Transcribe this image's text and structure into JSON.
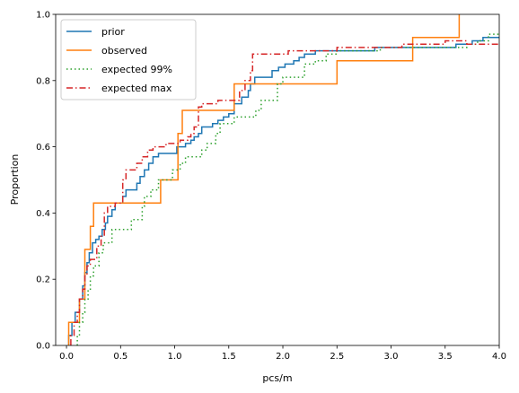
{
  "chart_data": {
    "type": "line",
    "step": true,
    "xlabel": "pcs/m",
    "ylabel": "Proportion",
    "xlim": [
      -0.1,
      4.0
    ],
    "ylim": [
      0.0,
      1.0
    ],
    "xticks": [
      "0.0",
      "0.5",
      "1.0",
      "1.5",
      "2.0",
      "2.5",
      "3.0",
      "3.5",
      "4.0"
    ],
    "yticks": [
      "0.0",
      "0.2",
      "0.4",
      "0.6",
      "0.8",
      "1.0"
    ],
    "legend_position": "top-left",
    "grid": false,
    "series": [
      {
        "name": "prior",
        "color": "#1f77b4",
        "dash": "solid",
        "points": [
          [
            0.02,
            0.0
          ],
          [
            0.02,
            0.03
          ],
          [
            0.05,
            0.03
          ],
          [
            0.05,
            0.07
          ],
          [
            0.08,
            0.07
          ],
          [
            0.08,
            0.1
          ],
          [
            0.12,
            0.1
          ],
          [
            0.12,
            0.14
          ],
          [
            0.15,
            0.14
          ],
          [
            0.15,
            0.18
          ],
          [
            0.17,
            0.18
          ],
          [
            0.17,
            0.22
          ],
          [
            0.19,
            0.22
          ],
          [
            0.19,
            0.25
          ],
          [
            0.21,
            0.25
          ],
          [
            0.21,
            0.28
          ],
          [
            0.24,
            0.28
          ],
          [
            0.24,
            0.31
          ],
          [
            0.27,
            0.31
          ],
          [
            0.27,
            0.32
          ],
          [
            0.3,
            0.32
          ],
          [
            0.3,
            0.33
          ],
          [
            0.33,
            0.33
          ],
          [
            0.33,
            0.35
          ],
          [
            0.36,
            0.35
          ],
          [
            0.36,
            0.37
          ],
          [
            0.38,
            0.37
          ],
          [
            0.38,
            0.39
          ],
          [
            0.42,
            0.39
          ],
          [
            0.42,
            0.41
          ],
          [
            0.45,
            0.41
          ],
          [
            0.45,
            0.43
          ],
          [
            0.52,
            0.43
          ],
          [
            0.52,
            0.45
          ],
          [
            0.55,
            0.45
          ],
          [
            0.55,
            0.47
          ],
          [
            0.65,
            0.47
          ],
          [
            0.65,
            0.49
          ],
          [
            0.68,
            0.49
          ],
          [
            0.68,
            0.51
          ],
          [
            0.72,
            0.51
          ],
          [
            0.72,
            0.53
          ],
          [
            0.76,
            0.53
          ],
          [
            0.76,
            0.55
          ],
          [
            0.8,
            0.55
          ],
          [
            0.8,
            0.57
          ],
          [
            0.85,
            0.57
          ],
          [
            0.85,
            0.58
          ],
          [
            0.9,
            0.58
          ],
          [
            0.9,
            0.58
          ],
          [
            1.02,
            0.58
          ],
          [
            1.02,
            0.6
          ],
          [
            1.1,
            0.6
          ],
          [
            1.1,
            0.61
          ],
          [
            1.15,
            0.61
          ],
          [
            1.15,
            0.62
          ],
          [
            1.18,
            0.62
          ],
          [
            1.18,
            0.63
          ],
          [
            1.22,
            0.63
          ],
          [
            1.22,
            0.64
          ],
          [
            1.25,
            0.64
          ],
          [
            1.25,
            0.66
          ],
          [
            1.35,
            0.66
          ],
          [
            1.35,
            0.67
          ],
          [
            1.4,
            0.67
          ],
          [
            1.4,
            0.68
          ],
          [
            1.45,
            0.68
          ],
          [
            1.45,
            0.69
          ],
          [
            1.5,
            0.69
          ],
          [
            1.5,
            0.7
          ],
          [
            1.55,
            0.7
          ],
          [
            1.55,
            0.73
          ],
          [
            1.62,
            0.73
          ],
          [
            1.62,
            0.75
          ],
          [
            1.68,
            0.75
          ],
          [
            1.68,
            0.77
          ],
          [
            1.7,
            0.77
          ],
          [
            1.7,
            0.79
          ],
          [
            1.74,
            0.79
          ],
          [
            1.74,
            0.81
          ],
          [
            1.9,
            0.81
          ],
          [
            1.9,
            0.83
          ],
          [
            1.96,
            0.83
          ],
          [
            1.96,
            0.84
          ],
          [
            2.02,
            0.84
          ],
          [
            2.02,
            0.85
          ],
          [
            2.1,
            0.85
          ],
          [
            2.1,
            0.86
          ],
          [
            2.15,
            0.86
          ],
          [
            2.15,
            0.87
          ],
          [
            2.2,
            0.87
          ],
          [
            2.2,
            0.88
          ],
          [
            2.3,
            0.88
          ],
          [
            2.3,
            0.89
          ],
          [
            2.85,
            0.89
          ],
          [
            2.85,
            0.9
          ],
          [
            3.6,
            0.9
          ],
          [
            3.6,
            0.91
          ],
          [
            3.75,
            0.91
          ],
          [
            3.75,
            0.92
          ],
          [
            3.85,
            0.92
          ],
          [
            3.85,
            0.93
          ],
          [
            4.0,
            0.93
          ]
        ]
      },
      {
        "name": "observed",
        "color": "#ff7f0e",
        "dash": "solid",
        "points": [
          [
            0.02,
            0.0
          ],
          [
            0.02,
            0.07
          ],
          [
            0.12,
            0.07
          ],
          [
            0.12,
            0.14
          ],
          [
            0.17,
            0.14
          ],
          [
            0.17,
            0.29
          ],
          [
            0.22,
            0.29
          ],
          [
            0.22,
            0.36
          ],
          [
            0.25,
            0.36
          ],
          [
            0.25,
            0.43
          ],
          [
            0.87,
            0.43
          ],
          [
            0.87,
            0.5
          ],
          [
            1.03,
            0.5
          ],
          [
            1.03,
            0.64
          ],
          [
            1.07,
            0.64
          ],
          [
            1.07,
            0.71
          ],
          [
            1.55,
            0.71
          ],
          [
            1.55,
            0.79
          ],
          [
            2.5,
            0.79
          ],
          [
            2.5,
            0.86
          ],
          [
            3.2,
            0.86
          ],
          [
            3.2,
            0.93
          ],
          [
            3.63,
            0.93
          ],
          [
            3.63,
            1.0
          ]
        ]
      },
      {
        "name": "expected 99%",
        "color": "#2ca02c",
        "dash": "dotted",
        "points": [
          [
            0.1,
            0.0
          ],
          [
            0.1,
            0.03
          ],
          [
            0.12,
            0.03
          ],
          [
            0.12,
            0.07
          ],
          [
            0.15,
            0.07
          ],
          [
            0.15,
            0.1
          ],
          [
            0.17,
            0.1
          ],
          [
            0.17,
            0.14
          ],
          [
            0.2,
            0.14
          ],
          [
            0.2,
            0.17
          ],
          [
            0.22,
            0.17
          ],
          [
            0.22,
            0.21
          ],
          [
            0.25,
            0.21
          ],
          [
            0.25,
            0.24
          ],
          [
            0.3,
            0.24
          ],
          [
            0.3,
            0.28
          ],
          [
            0.34,
            0.28
          ],
          [
            0.34,
            0.31
          ],
          [
            0.42,
            0.31
          ],
          [
            0.42,
            0.35
          ],
          [
            0.6,
            0.35
          ],
          [
            0.6,
            0.38
          ],
          [
            0.7,
            0.38
          ],
          [
            0.7,
            0.42
          ],
          [
            0.72,
            0.42
          ],
          [
            0.72,
            0.45
          ],
          [
            0.78,
            0.45
          ],
          [
            0.78,
            0.47
          ],
          [
            0.85,
            0.47
          ],
          [
            0.85,
            0.5
          ],
          [
            0.98,
            0.5
          ],
          [
            0.98,
            0.53
          ],
          [
            1.05,
            0.53
          ],
          [
            1.05,
            0.55
          ],
          [
            1.1,
            0.55
          ],
          [
            1.1,
            0.57
          ],
          [
            1.25,
            0.57
          ],
          [
            1.25,
            0.59
          ],
          [
            1.3,
            0.59
          ],
          [
            1.3,
            0.61
          ],
          [
            1.38,
            0.61
          ],
          [
            1.38,
            0.64
          ],
          [
            1.42,
            0.64
          ],
          [
            1.42,
            0.67
          ],
          [
            1.55,
            0.67
          ],
          [
            1.55,
            0.69
          ],
          [
            1.75,
            0.69
          ],
          [
            1.75,
            0.71
          ],
          [
            1.8,
            0.71
          ],
          [
            1.8,
            0.74
          ],
          [
            1.95,
            0.74
          ],
          [
            1.95,
            0.79
          ],
          [
            2.0,
            0.79
          ],
          [
            2.0,
            0.81
          ],
          [
            2.2,
            0.81
          ],
          [
            2.2,
            0.85
          ],
          [
            2.3,
            0.85
          ],
          [
            2.3,
            0.86
          ],
          [
            2.4,
            0.86
          ],
          [
            2.4,
            0.88
          ],
          [
            2.5,
            0.88
          ],
          [
            2.5,
            0.89
          ],
          [
            2.9,
            0.89
          ],
          [
            2.9,
            0.9
          ],
          [
            3.7,
            0.9
          ],
          [
            3.7,
            0.91
          ],
          [
            3.8,
            0.91
          ],
          [
            3.8,
            0.92
          ],
          [
            3.9,
            0.92
          ],
          [
            3.9,
            0.94
          ],
          [
            4.0,
            0.94
          ]
        ]
      },
      {
        "name": "expected max",
        "color": "#d62728",
        "dash": "dashdot",
        "points": [
          [
            0.04,
            0.0
          ],
          [
            0.04,
            0.03
          ],
          [
            0.07,
            0.03
          ],
          [
            0.07,
            0.07
          ],
          [
            0.1,
            0.07
          ],
          [
            0.1,
            0.1
          ],
          [
            0.12,
            0.1
          ],
          [
            0.12,
            0.14
          ],
          [
            0.15,
            0.14
          ],
          [
            0.15,
            0.17
          ],
          [
            0.17,
            0.17
          ],
          [
            0.17,
            0.21
          ],
          [
            0.19,
            0.21
          ],
          [
            0.19,
            0.24
          ],
          [
            0.22,
            0.24
          ],
          [
            0.22,
            0.26
          ],
          [
            0.28,
            0.26
          ],
          [
            0.28,
            0.3
          ],
          [
            0.32,
            0.3
          ],
          [
            0.32,
            0.33
          ],
          [
            0.35,
            0.33
          ],
          [
            0.35,
            0.4
          ],
          [
            0.38,
            0.4
          ],
          [
            0.38,
            0.42
          ],
          [
            0.45,
            0.42
          ],
          [
            0.45,
            0.43
          ],
          [
            0.52,
            0.43
          ],
          [
            0.52,
            0.5
          ],
          [
            0.55,
            0.5
          ],
          [
            0.55,
            0.53
          ],
          [
            0.65,
            0.53
          ],
          [
            0.65,
            0.55
          ],
          [
            0.7,
            0.55
          ],
          [
            0.7,
            0.57
          ],
          [
            0.75,
            0.57
          ],
          [
            0.75,
            0.59
          ],
          [
            0.8,
            0.59
          ],
          [
            0.8,
            0.6
          ],
          [
            0.92,
            0.6
          ],
          [
            0.92,
            0.61
          ],
          [
            1.05,
            0.61
          ],
          [
            1.05,
            0.62
          ],
          [
            1.12,
            0.62
          ],
          [
            1.12,
            0.63
          ],
          [
            1.15,
            0.63
          ],
          [
            1.15,
            0.64
          ],
          [
            1.18,
            0.64
          ],
          [
            1.18,
            0.66
          ],
          [
            1.22,
            0.66
          ],
          [
            1.22,
            0.72
          ],
          [
            1.25,
            0.72
          ],
          [
            1.25,
            0.73
          ],
          [
            1.4,
            0.73
          ],
          [
            1.4,
            0.74
          ],
          [
            1.6,
            0.74
          ],
          [
            1.6,
            0.77
          ],
          [
            1.65,
            0.77
          ],
          [
            1.65,
            0.8
          ],
          [
            1.7,
            0.8
          ],
          [
            1.7,
            0.83
          ],
          [
            1.72,
            0.83
          ],
          [
            1.72,
            0.88
          ],
          [
            1.8,
            0.88
          ],
          [
            1.8,
            0.88
          ],
          [
            2.05,
            0.88
          ],
          [
            2.05,
            0.89
          ],
          [
            2.5,
            0.89
          ],
          [
            2.5,
            0.9
          ],
          [
            3.1,
            0.9
          ],
          [
            3.1,
            0.91
          ],
          [
            3.5,
            0.91
          ],
          [
            3.5,
            0.92
          ],
          [
            3.7,
            0.92
          ],
          [
            3.7,
            0.91
          ],
          [
            4.0,
            0.91
          ]
        ]
      }
    ]
  }
}
